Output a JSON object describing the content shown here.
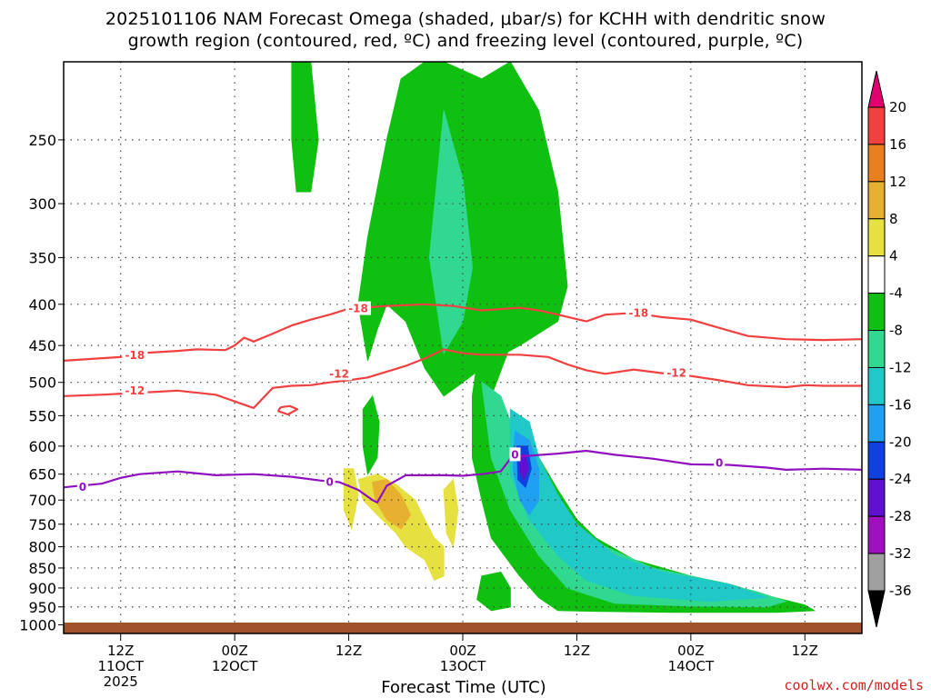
{
  "title_line1": "2025101106 NAM Forecast Omega (shaded, μbar/s) for KCHH with dendritic snow",
  "title_line2": "growth region (contoured, red, ºC) and freezing level (contoured, purple, ºC)",
  "xlabel": "Forecast Time (UTC)",
  "credit": "coolwx.com/models",
  "chart_data": {
    "type": "heatmap",
    "xlabel": "Forecast Time (UTC)",
    "ylabel": "",
    "x_unit": "hours from 2025-10-11 06Z",
    "xlim": [
      0,
      84
    ],
    "y_pressure_ticks": [
      250,
      300,
      350,
      400,
      450,
      500,
      550,
      600,
      650,
      700,
      750,
      800,
      850,
      900,
      950,
      1000
    ],
    "ylim": [
      1025,
      200
    ],
    "x_ticks": [
      {
        "h": 6,
        "l1": "12Z",
        "l2": "11OCT",
        "l3": "2025"
      },
      {
        "h": 18,
        "l1": "00Z",
        "l2": "12OCT",
        "l3": ""
      },
      {
        "h": 30,
        "l1": "12Z",
        "l2": "",
        "l3": ""
      },
      {
        "h": 42,
        "l1": "00Z",
        "l2": "13OCT",
        "l3": ""
      },
      {
        "h": 54,
        "l1": "12Z",
        "l2": "",
        "l3": ""
      },
      {
        "h": 66,
        "l1": "00Z",
        "l2": "14OCT",
        "l3": ""
      },
      {
        "h": 78,
        "l1": "12Z",
        "l2": "",
        "l3": ""
      }
    ],
    "colorbar": {
      "labels": [
        "20",
        "16",
        "12",
        "8",
        "4",
        "-4",
        "-8",
        "-12",
        "-16",
        "-20",
        "-24",
        "-28",
        "-32",
        "-36"
      ],
      "colors": [
        "#e00070",
        "#f04040",
        "#e88020",
        "#e8b030",
        "#e6e040",
        "#ffffff",
        "#10c010",
        "#30d890",
        "#20c8c8",
        "#20a0f0",
        "#1040e0",
        "#6010d0",
        "#a010c0",
        "#a0a0a0",
        "#000000"
      ]
    },
    "contours": [
      {
        "label": "-18",
        "color": "#f04040",
        "points": [
          [
            0,
            470
          ],
          [
            6,
            465
          ],
          [
            8,
            460
          ],
          [
            12,
            457
          ],
          [
            14,
            455
          ],
          [
            17,
            456
          ],
          [
            18,
            450
          ],
          [
            19,
            440
          ],
          [
            20,
            445
          ],
          [
            22,
            435
          ],
          [
            24,
            425
          ],
          [
            26,
            418
          ],
          [
            28,
            412
          ],
          [
            30,
            405
          ],
          [
            34,
            402
          ],
          [
            38,
            400
          ],
          [
            41,
            402
          ],
          [
            44,
            407
          ],
          [
            48,
            404
          ],
          [
            50,
            407
          ],
          [
            52,
            412
          ],
          [
            55,
            420
          ],
          [
            57,
            412
          ],
          [
            60,
            410
          ],
          [
            63,
            415
          ],
          [
            66,
            418
          ],
          [
            69,
            428
          ],
          [
            72,
            438
          ],
          [
            76,
            442
          ],
          [
            80,
            443
          ],
          [
            84,
            442
          ]
        ]
      },
      {
        "label": "-12",
        "color": "#f04040",
        "points": [
          [
            0,
            520
          ],
          [
            4,
            518
          ],
          [
            8,
            515
          ],
          [
            12,
            512
          ],
          [
            16,
            518
          ],
          [
            20,
            538
          ],
          [
            22,
            508
          ],
          [
            24,
            505
          ],
          [
            26,
            504
          ],
          [
            28,
            500
          ],
          [
            30,
            497
          ],
          [
            32,
            493
          ],
          [
            36,
            477
          ],
          [
            38,
            467
          ],
          [
            40,
            455
          ],
          [
            42,
            460
          ],
          [
            44,
            462
          ],
          [
            48,
            462
          ],
          [
            51,
            465
          ],
          [
            53,
            475
          ],
          [
            55,
            483
          ],
          [
            57,
            488
          ],
          [
            60,
            482
          ],
          [
            63,
            487
          ],
          [
            66,
            491
          ],
          [
            69,
            497
          ],
          [
            72,
            504
          ],
          [
            76,
            507
          ],
          [
            78,
            504
          ],
          [
            80,
            505
          ],
          [
            84,
            505
          ]
        ]
      },
      {
        "label": "-12",
        "color": "#f04040",
        "points": [
          [
            22.8,
            537
          ],
          [
            23.8,
            535
          ],
          [
            24.6,
            540
          ],
          [
            23.6,
            548
          ],
          [
            22.6,
            543
          ],
          [
            22.8,
            537
          ]
        ]
      },
      {
        "label": "0",
        "color": "#9010c0",
        "points": [
          [
            0,
            675
          ],
          [
            4,
            668
          ],
          [
            6,
            657
          ],
          [
            8,
            650
          ],
          [
            12,
            645
          ],
          [
            16,
            652
          ],
          [
            20,
            650
          ],
          [
            24,
            655
          ],
          [
            27,
            662
          ],
          [
            29,
            665
          ],
          [
            31,
            680
          ],
          [
            32.5,
            700
          ],
          [
            33,
            705
          ],
          [
            34,
            672
          ],
          [
            36,
            652
          ],
          [
            40,
            652
          ],
          [
            42,
            653
          ],
          [
            44,
            650
          ],
          [
            46,
            645
          ],
          [
            47,
            622
          ],
          [
            48,
            618
          ],
          [
            52,
            613
          ],
          [
            55,
            608
          ],
          [
            58,
            615
          ],
          [
            62,
            622
          ],
          [
            66,
            632
          ],
          [
            70,
            633
          ],
          [
            74,
            638
          ],
          [
            76,
            642
          ],
          [
            80,
            640
          ],
          [
            84,
            642
          ]
        ]
      }
    ],
    "contour_labels": [
      {
        "text": "-18",
        "h": 7.5,
        "p": 463,
        "color": "#f04040"
      },
      {
        "text": "-18",
        "h": 31,
        "p": 405,
        "color": "#f04040"
      },
      {
        "text": "-18",
        "h": 60.5,
        "p": 410,
        "color": "#f04040"
      },
      {
        "text": "-12",
        "h": 7.5,
        "p": 512,
        "color": "#f04040"
      },
      {
        "text": "-12",
        "h": 29,
        "p": 488,
        "color": "#f04040"
      },
      {
        "text": "-12",
        "h": 64.5,
        "p": 487,
        "color": "#f04040"
      },
      {
        "text": "0",
        "h": 2,
        "p": 675,
        "color": "#9010c0"
      },
      {
        "text": "0",
        "h": 28,
        "p": 665,
        "color": "#9010c0"
      },
      {
        "text": "0",
        "h": 47.5,
        "p": 615,
        "color": "#9010c0"
      },
      {
        "text": "0",
        "h": 69,
        "p": 630,
        "color": "#9010c0"
      }
    ],
    "shaded_regions": [
      {
        "level": "-4",
        "color": "#10c010",
        "points": [
          [
            35.5,
            210
          ],
          [
            38,
            200
          ],
          [
            40,
            200
          ],
          [
            44,
            210
          ],
          [
            47,
            200
          ],
          [
            50,
            230
          ],
          [
            52,
            290
          ],
          [
            53,
            380
          ],
          [
            52,
            420
          ],
          [
            48,
            450
          ],
          [
            45,
            470
          ],
          [
            42,
            500
          ],
          [
            40,
            520
          ],
          [
            38,
            480
          ],
          [
            36,
            420
          ],
          [
            34,
            400
          ],
          [
            33,
            430
          ],
          [
            32,
            470
          ],
          [
            31,
            400
          ],
          [
            32,
            330
          ],
          [
            34,
            250
          ]
        ]
      },
      {
        "level": "-4",
        "color": "#10c010",
        "points": [
          [
            44,
            430
          ],
          [
            46,
            400
          ],
          [
            47,
            450
          ],
          [
            45,
            520
          ],
          [
            46,
            560
          ],
          [
            48,
            580
          ],
          [
            50,
            620
          ],
          [
            52,
            680
          ],
          [
            54,
            740
          ],
          [
            56,
            780
          ],
          [
            60,
            830
          ],
          [
            66,
            870
          ],
          [
            70,
            890
          ],
          [
            74,
            920
          ],
          [
            78,
            945
          ],
          [
            79,
            960
          ],
          [
            75,
            965
          ],
          [
            64,
            965
          ],
          [
            56,
            962
          ],
          [
            52,
            960
          ],
          [
            50,
            925
          ],
          [
            48,
            870
          ],
          [
            45,
            780
          ],
          [
            44,
            700
          ],
          [
            43,
            620
          ],
          [
            43,
            520
          ]
        ]
      },
      {
        "level": "-4",
        "color": "#10c010",
        "points": [
          [
            24,
            200
          ],
          [
            26,
            200
          ],
          [
            26.8,
            250
          ],
          [
            26,
            290
          ],
          [
            24.5,
            290
          ],
          [
            24,
            250
          ]
        ]
      },
      {
        "level": "-4",
        "color": "#10c010",
        "points": [
          [
            44,
            870
          ],
          [
            46,
            860
          ],
          [
            47,
            900
          ],
          [
            47,
            950
          ],
          [
            45,
            960
          ],
          [
            43.5,
            930
          ]
        ]
      },
      {
        "level": "-4",
        "color": "#10c010",
        "points": [
          [
            31.5,
            540
          ],
          [
            32.5,
            520
          ],
          [
            33.2,
            560
          ],
          [
            33,
            620
          ],
          [
            32,
            650
          ],
          [
            31.5,
            600
          ]
        ]
      },
      {
        "level": "-8",
        "color": "#30d890",
        "points": [
          [
            38.5,
            350
          ],
          [
            40,
            230
          ],
          [
            42,
            280
          ],
          [
            43,
            360
          ],
          [
            42,
            420
          ],
          [
            40,
            460
          ]
        ]
      },
      {
        "level": "-8",
        "color": "#30d890",
        "points": [
          [
            44,
            500
          ],
          [
            46,
            520
          ],
          [
            48,
            600
          ],
          [
            51,
            680
          ],
          [
            54,
            760
          ],
          [
            57,
            800
          ],
          [
            62,
            850
          ],
          [
            68,
            880
          ],
          [
            73,
            910
          ],
          [
            76,
            935
          ],
          [
            74,
            950
          ],
          [
            66,
            948
          ],
          [
            58,
            940
          ],
          [
            53,
            900
          ],
          [
            50,
            820
          ],
          [
            47,
            720
          ],
          [
            45,
            620
          ]
        ]
      },
      {
        "level": "-12",
        "color": "#20c8c8",
        "points": [
          [
            47,
            540
          ],
          [
            49,
            560
          ],
          [
            50,
            620
          ],
          [
            52,
            690
          ],
          [
            54,
            750
          ],
          [
            58,
            820
          ],
          [
            63,
            860
          ],
          [
            70,
            890
          ],
          [
            74,
            925
          ],
          [
            68,
            935
          ],
          [
            60,
            920
          ],
          [
            55,
            880
          ],
          [
            52,
            820
          ],
          [
            49,
            740
          ],
          [
            47,
            650
          ]
        ]
      },
      {
        "level": "-16",
        "color": "#20a0f0",
        "points": [
          [
            47.5,
            575
          ],
          [
            49,
            590
          ],
          [
            50,
            640
          ],
          [
            50,
            700
          ],
          [
            49,
            730
          ],
          [
            48,
            700
          ],
          [
            47.3,
            640
          ]
        ]
      },
      {
        "level": "-20",
        "color": "#1040e0",
        "points": [
          [
            47.7,
            600
          ],
          [
            48.8,
            600
          ],
          [
            49.2,
            640
          ],
          [
            48.6,
            675
          ],
          [
            47.8,
            660
          ]
        ]
      },
      {
        "level": "-24",
        "color": "#6010d0",
        "points": [
          [
            48,
            615
          ],
          [
            48.6,
            615
          ],
          [
            48.9,
            640
          ],
          [
            48.4,
            660
          ],
          [
            48,
            645
          ]
        ]
      },
      {
        "level": "4",
        "color": "#e6e040",
        "points": [
          [
            29.5,
            640
          ],
          [
            30.5,
            640
          ],
          [
            31,
            690
          ],
          [
            30.3,
            760
          ],
          [
            29.5,
            720
          ]
        ]
      },
      {
        "level": "4",
        "color": "#e6e040",
        "points": [
          [
            31,
            660
          ],
          [
            33,
            650
          ],
          [
            35,
            670
          ],
          [
            37,
            700
          ],
          [
            38,
            740
          ],
          [
            39,
            780
          ],
          [
            40,
            800
          ],
          [
            40,
            870
          ],
          [
            39,
            880
          ],
          [
            38,
            830
          ],
          [
            36,
            800
          ],
          [
            35,
            770
          ],
          [
            33,
            730
          ],
          [
            31.5,
            700
          ]
        ]
      },
      {
        "level": "4",
        "color": "#e6e040",
        "points": [
          [
            40,
            680
          ],
          [
            41,
            660
          ],
          [
            41.5,
            720
          ],
          [
            41,
            800
          ],
          [
            40.3,
            770
          ]
        ]
      },
      {
        "level": "8",
        "color": "#e8b030",
        "points": [
          [
            32.5,
            665
          ],
          [
            34,
            660
          ],
          [
            35.5,
            690
          ],
          [
            36.5,
            730
          ],
          [
            35.5,
            760
          ],
          [
            34,
            740
          ],
          [
            32.8,
            700
          ]
        ]
      }
    ]
  }
}
